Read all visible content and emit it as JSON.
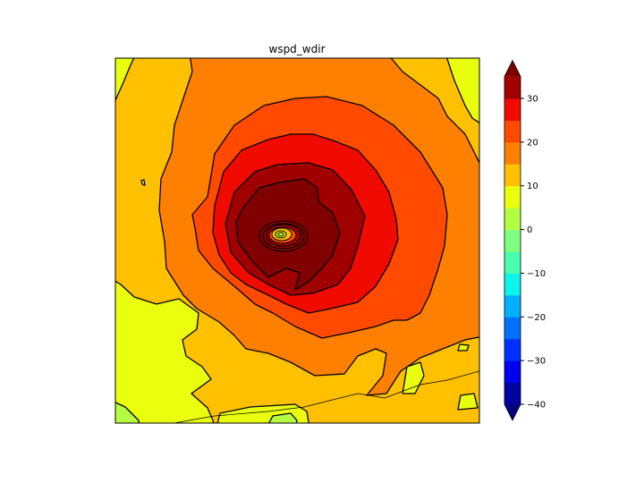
{
  "chart_data": {
    "type": "contour",
    "title": "wspd_wdir",
    "xlabel": "",
    "ylabel": "",
    "axes_ticks_visible": false,
    "colormap": "jet",
    "extend": "both",
    "levels": [
      -40,
      -35,
      -30,
      -25,
      -20,
      -15,
      -10,
      -5,
      0,
      5,
      10,
      15,
      20,
      25,
      30,
      35
    ],
    "band_colors": [
      "#0000a0",
      "#0000f0",
      "#0030ff",
      "#0070ff",
      "#00b0ff",
      "#0cf4eb",
      "#49ffad",
      "#7fff7f",
      "#b5ff42",
      "#eaff0e",
      "#ffc000",
      "#ff8000",
      "#ff4a00",
      "#f00a00",
      "#a00000"
    ],
    "under_color": "#000080",
    "over_color": "#800000",
    "colorbar": {
      "placement": "right",
      "ticks": [
        "30",
        "20",
        "10",
        "0",
        "−10",
        "−20",
        "−30",
        "−40"
      ],
      "tick_values": [
        30,
        20,
        10,
        0,
        -10,
        -20,
        -30,
        -40
      ]
    },
    "description_of_field": "concentric wind speed maximum near center, eye in middle"
  }
}
